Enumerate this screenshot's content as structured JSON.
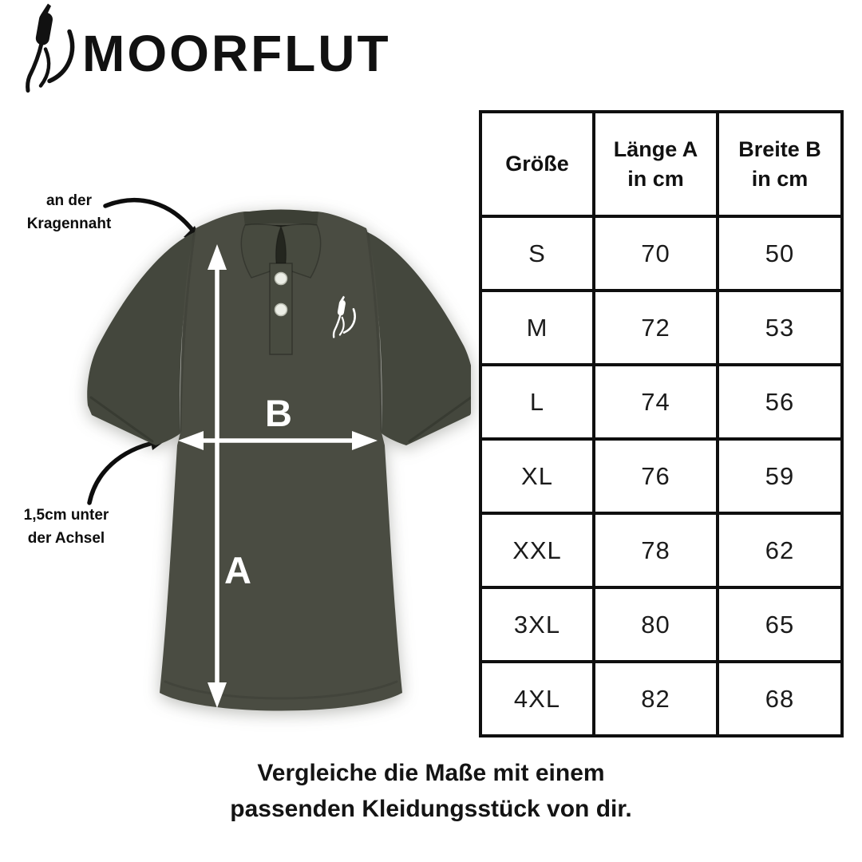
{
  "brand": {
    "name": "MOORFLUT",
    "logo_icon": "cattail-reed-icon"
  },
  "diagram": {
    "measure_labels": {
      "length": "A",
      "width": "B"
    },
    "annotations": {
      "collar": {
        "line1": "an der",
        "line2": "Kragennaht"
      },
      "armpit": {
        "line1": "1,5cm unter",
        "line2": "der Achsel"
      }
    }
  },
  "size_table": {
    "columns": [
      {
        "line1": "Größe",
        "line2": ""
      },
      {
        "line1": "Länge A",
        "line2": "in cm"
      },
      {
        "line1": "Breite B",
        "line2": "in cm"
      }
    ],
    "rows": [
      {
        "size": "S",
        "length_cm": "70",
        "width_cm": "50"
      },
      {
        "size": "M",
        "length_cm": "72",
        "width_cm": "53"
      },
      {
        "size": "L",
        "length_cm": "74",
        "width_cm": "56"
      },
      {
        "size": "XL",
        "length_cm": "76",
        "width_cm": "59"
      },
      {
        "size": "XXL",
        "length_cm": "78",
        "width_cm": "62"
      },
      {
        "size": "3XL",
        "length_cm": "80",
        "width_cm": "65"
      },
      {
        "size": "4XL",
        "length_cm": "82",
        "width_cm": "68"
      }
    ]
  },
  "footer": {
    "line1": "Vergleiche die Maße mit einem",
    "line2": "passenden Kleidungsstück von dir."
  },
  "colors": {
    "shirt_base": "#4a4c42",
    "shirt_shade": "#44473d",
    "shirt_dark": "#24261f",
    "ink": "#111111",
    "measure_arrow": "#ffffff"
  }
}
